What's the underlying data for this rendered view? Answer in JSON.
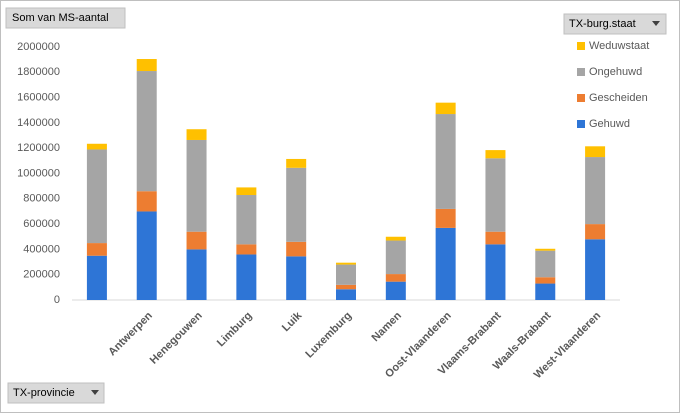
{
  "chart_data": {
    "type": "stacked_bar",
    "value_field": "Som van MS-aantal",
    "legend_field": "TX-burg.staat",
    "axis_field": "TX-provincie",
    "categories": [
      null,
      "Antwerpen",
      "Henegouwen",
      "Limburg",
      "Luik",
      "Luxemburg",
      "Namen",
      "Oost-Vlaanderen",
      "Vlaams-Brabant",
      "Waals-Brabant",
      "West-Vlaanderen"
    ],
    "series": [
      {
        "name": "Gehuwd",
        "color": "#2e75d6",
        "values": [
          350000,
          700000,
          400000,
          360000,
          345000,
          85000,
          145000,
          570000,
          440000,
          130000,
          480000
        ]
      },
      {
        "name": "Gescheiden",
        "color": "#ed7d31",
        "values": [
          100000,
          160000,
          140000,
          80000,
          115000,
          35000,
          60000,
          150000,
          100000,
          50000,
          120000
        ]
      },
      {
        "name": "Ongehuwd",
        "color": "#a5a5a5",
        "values": [
          740000,
          950000,
          725000,
          390000,
          585000,
          160000,
          265000,
          750000,
          580000,
          210000,
          530000
        ]
      },
      {
        "name": "Weduwstaat",
        "color": "#ffc000",
        "values": [
          45000,
          95000,
          85000,
          60000,
          70000,
          15000,
          30000,
          90000,
          65000,
          15000,
          85000
        ]
      }
    ],
    "ylim": [
      0,
      2000000
    ],
    "yticks": [
      0,
      200000,
      400000,
      600000,
      800000,
      1000000,
      1200000,
      1400000,
      1600000,
      1800000,
      2000000
    ],
    "grid": false,
    "legend": "right"
  }
}
